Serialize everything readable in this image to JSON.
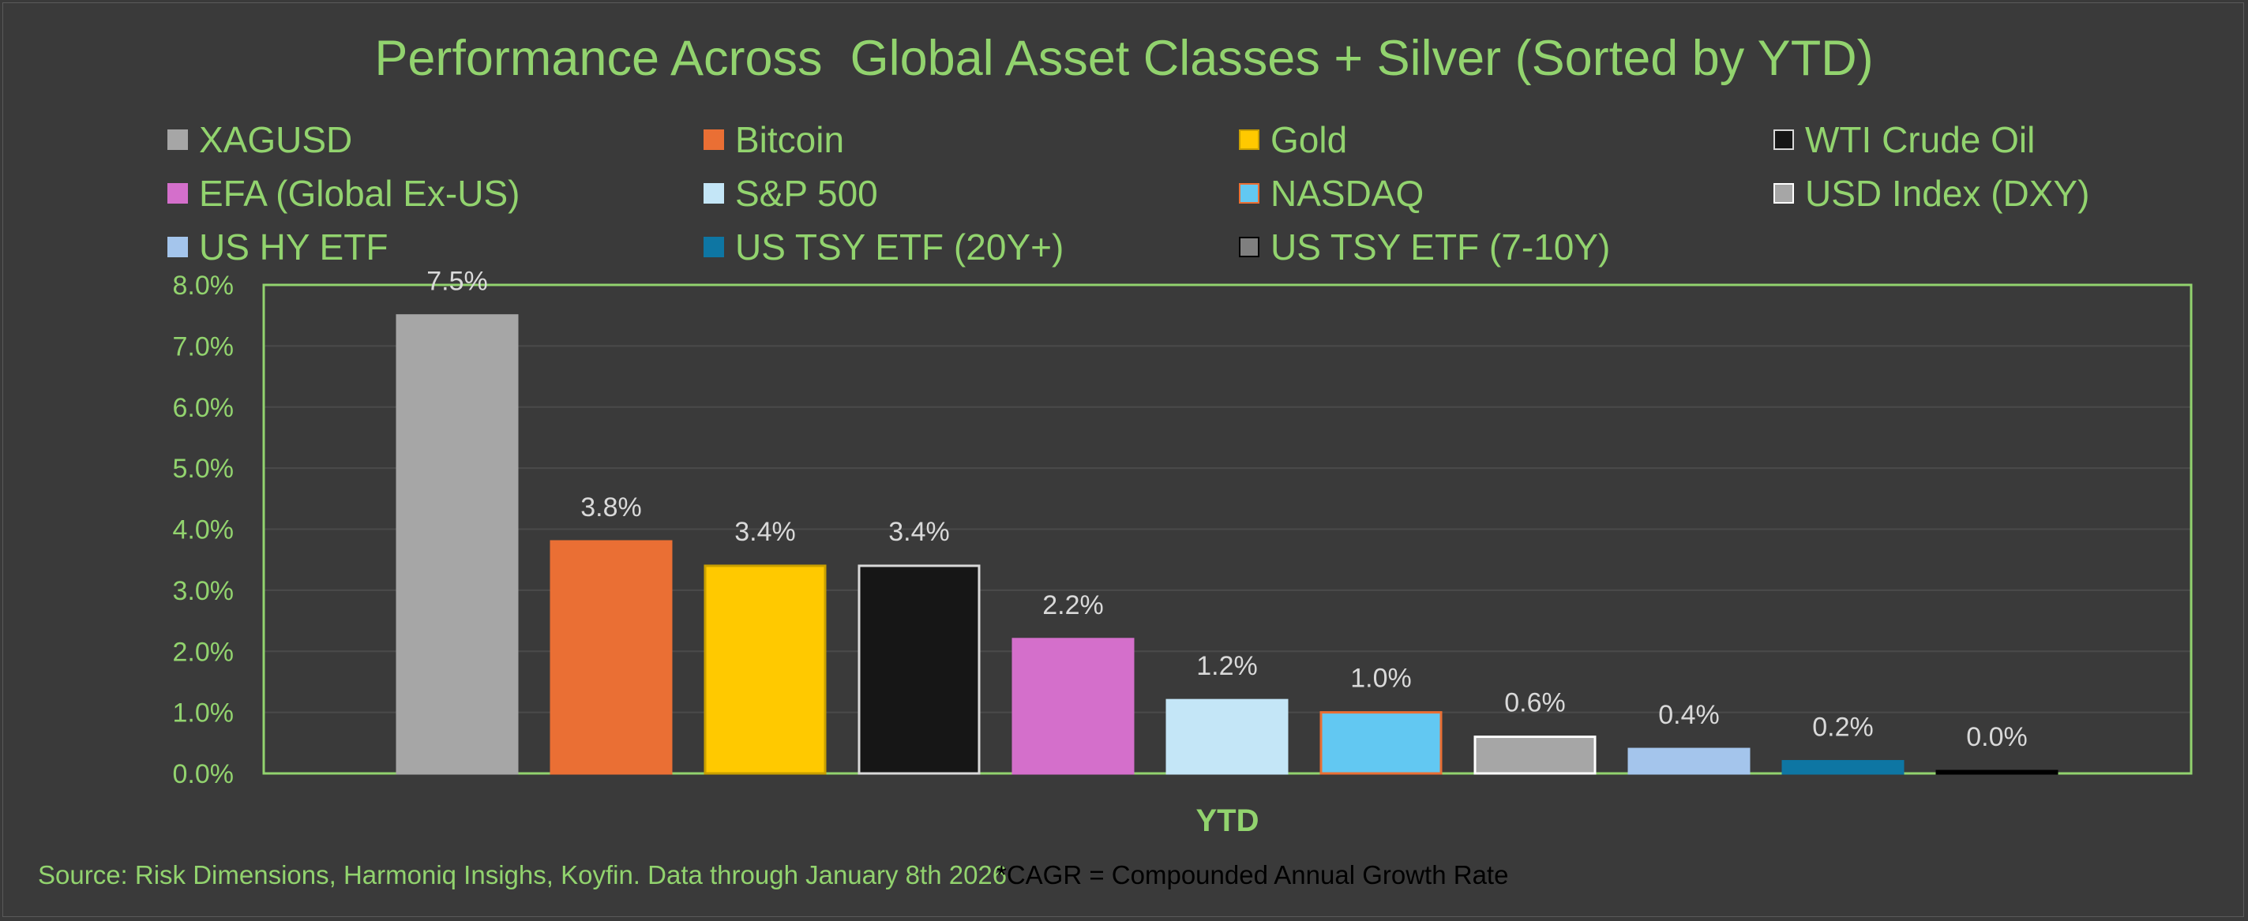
{
  "chart_data": {
    "type": "bar",
    "title": "Performance Across  Global Asset Classes + Silver (Sorted by YTD)",
    "xlabel": "YTD",
    "ylabel": "",
    "ylim": [
      0,
      8
    ],
    "yticks": [
      "0.0%",
      "1.0%",
      "2.0%",
      "3.0%",
      "4.0%",
      "5.0%",
      "6.0%",
      "7.0%",
      "8.0%"
    ],
    "grid": true,
    "legend_position": "top",
    "categories": [
      "YTD"
    ],
    "series": [
      {
        "name": "XAGUSD",
        "values": [
          7.5
        ],
        "label": "7.5%",
        "color": "#a6a6a6",
        "border": "#a6a6a6"
      },
      {
        "name": "Bitcoin",
        "values": [
          3.8
        ],
        "label": "3.8%",
        "color": "#ea6f34",
        "border": "#ea6f34"
      },
      {
        "name": "Gold",
        "values": [
          3.4
        ],
        "label": "3.4%",
        "color": "#ffc900",
        "border": "#c9a000"
      },
      {
        "name": "WTI Crude Oil",
        "values": [
          3.4
        ],
        "label": "3.4%",
        "color": "#161616",
        "border": "#d9d9d9"
      },
      {
        "name": "EFA (Global Ex-US)",
        "values": [
          2.2
        ],
        "label": "2.2%",
        "color": "#d46fcb",
        "border": "#d46fcb"
      },
      {
        "name": "S&P 500",
        "values": [
          1.2
        ],
        "label": "1.2%",
        "color": "#c4e6f7",
        "border": "#c4e6f7"
      },
      {
        "name": "NASDAQ",
        "values": [
          1.0
        ],
        "label": "1.0%",
        "color": "#62c8f2",
        "border": "#ea6f34"
      },
      {
        "name": "USD Index (DXY)",
        "values": [
          0.6
        ],
        "label": "0.6%",
        "color": "#a6a6a6",
        "border": "#ffffff"
      },
      {
        "name": "US HY ETF",
        "values": [
          0.4
        ],
        "label": "0.4%",
        "color": "#a4c5ec",
        "border": "#a4c5ec"
      },
      {
        "name": "US TSY ETF (20Y+)",
        "values": [
          0.2
        ],
        "label": "0.2%",
        "color": "#0e76a3",
        "border": "#0e76a3"
      },
      {
        "name": "US TSY ETF (7-10Y)",
        "values": [
          0.0
        ],
        "label": "0.0%",
        "color": "#7f7f7f",
        "border": "#000000"
      }
    ]
  },
  "colors": {
    "background": "#3a3a3a",
    "text": "#92d36e",
    "plot_border": "#92d36e",
    "gridline": "#4a4a4a",
    "value_label": "#d9d9d9"
  },
  "footer": {
    "source": "Source: Risk Dimensions, Harmoniq Insighs, Koyfin. Data through January 8th 2026",
    "cagr_note": "*CAGR = Compounded Annual Growth Rate"
  }
}
